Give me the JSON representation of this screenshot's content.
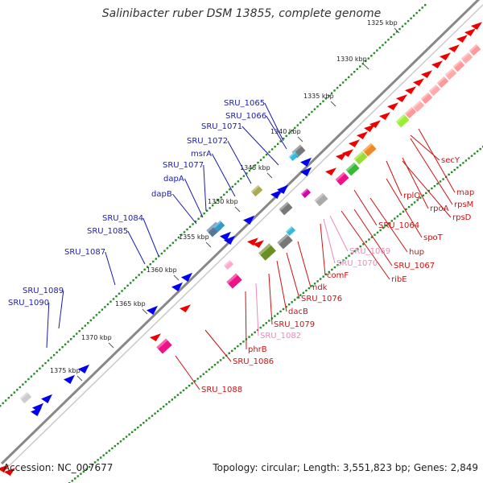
{
  "title": "Salinibacter ruber DSM 13855, complete genome",
  "footer": {
    "accession": "Accession: NC_007677",
    "summary": "Topology: circular; Length: 3,551,823 bp; Genes: 2,849"
  },
  "colors": {
    "forward_gene": "#0000ee",
    "reverse_gene": "#ee0000",
    "label_forward": "#1b1bb0",
    "label_reverse": "#cc1111",
    "label_pink": "#ee88bb",
    "backbone": "#888888",
    "tick_dot": "#228b22"
  },
  "ticks": [
    "1325 kbp",
    "1330 kbp",
    "1335 kbp",
    "1340 kbp",
    "1345 kbp",
    "1350 kbp",
    "1355 kbp",
    "1360 kbp",
    "1365 kbp",
    "1370 kbp",
    "1375 kbp"
  ],
  "forward_labels": [
    "SRU_1065",
    "SRU_1066",
    "SRU_1071",
    "SRU_1072",
    "msrA",
    "SRU_1077",
    "dapA",
    "dapB",
    "SRU_1084",
    "SRU_1085",
    "SRU_1087",
    "SRU_1089",
    "SRU_1090"
  ],
  "reverse_labels": [
    "secY",
    "map",
    "rpsM",
    "rplQ",
    "rpoA",
    "rpsD",
    "SRU_1064",
    "spoT",
    "hup",
    "SRU_1069",
    "SRU_1070",
    "SRU_1067",
    "ribE",
    "comF",
    "ndk",
    "SRU_1076",
    "dacB",
    "SRU_1079",
    "SRU_1082",
    "phrB",
    "SRU_1086",
    "SRU_1088"
  ]
}
